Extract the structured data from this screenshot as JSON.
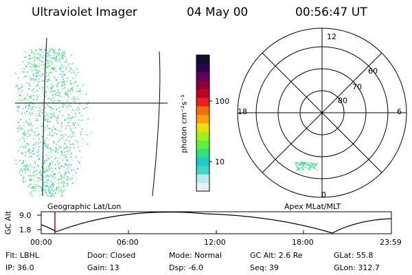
{
  "header": {
    "instrument": "Ultraviolet Imager",
    "date": "04 May 00",
    "time": "00:56:47 UT"
  },
  "panels": {
    "geo_title": "Geographic Lat/Lon",
    "apex_title": "Apex MLat/MLT"
  },
  "colorbar": {
    "unit_label": "photon cm⁻²s⁻¹",
    "ticks": [
      "100",
      "10"
    ],
    "scale": "log",
    "colors": [
      "#e8eef0",
      "#bfe8ec",
      "#40d8c0",
      "#20c8d0",
      "#30e080",
      "#60f040",
      "#a0f020",
      "#e8e010",
      "#f8a010",
      "#f07010",
      "#e82020",
      "#c00020",
      "#900030",
      "#600060",
      "#300050",
      "#101030"
    ]
  },
  "polar": {
    "mlt_labels": {
      "top": "12",
      "left": "18",
      "right": "6",
      "bottom": "0"
    },
    "lat_labels": [
      "60",
      "70",
      "80"
    ]
  },
  "timeline": {
    "ylabel": "GC Alt",
    "yticks": [
      "9.0",
      "1.8"
    ],
    "xticks": [
      "00:00",
      "06:00",
      "12:00",
      "18:00",
      "23:59"
    ],
    "marker_time": "00:56:47",
    "marker_color": "#cc0000"
  },
  "footer": {
    "row1": {
      "flt": "Flt: LBHL",
      "door": "Door: Closed",
      "mode": "Mode: Normal",
      "gcalt": "GC Alt: 2.6 Re",
      "glat": "GLat:  55.8"
    },
    "row2": {
      "ip": "IP: 36.0",
      "gain": "Gain: 13",
      "dsp": "Dsp:    -6.0",
      "seq": "Seq: 39",
      "glon": "GLon: 312.7"
    }
  }
}
